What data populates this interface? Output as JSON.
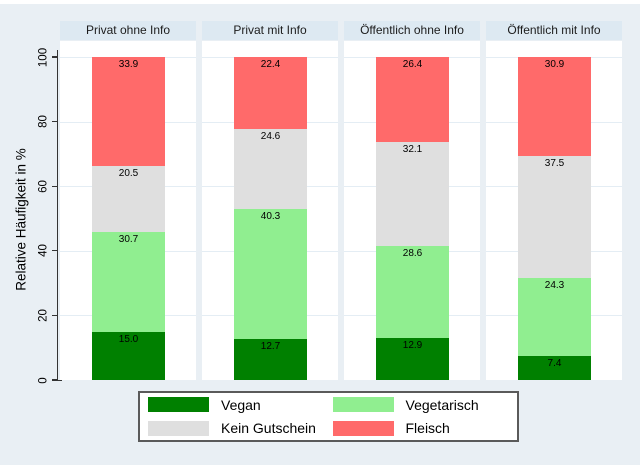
{
  "chart_data": {
    "type": "bar",
    "stacked": true,
    "categories": [
      "Privat ohne Info",
      "Privat mit Info",
      "Öffentlich ohne Info",
      "Öffentlich mit Info"
    ],
    "series": [
      {
        "name": "Vegan",
        "color": "#008000",
        "values": [
          15.0,
          12.7,
          12.9,
          7.4
        ]
      },
      {
        "name": "Vegetarisch",
        "color": "#90ee90",
        "values": [
          30.7,
          40.3,
          28.6,
          24.3
        ]
      },
      {
        "name": "Kein Gutschein",
        "color": "#dfdfdf",
        "values": [
          20.5,
          24.6,
          32.1,
          37.5
        ]
      },
      {
        "name": "Fleisch",
        "color": "#ff6a6a",
        "values": [
          33.9,
          22.4,
          26.4,
          30.9
        ]
      }
    ],
    "ylabel": "Relative Häufigkeit in %",
    "yticks": [
      0,
      20,
      40,
      60,
      80,
      100
    ],
    "ylim": [
      0,
      100
    ],
    "grid": true,
    "legend_position": "bottom",
    "value_labels_shown": true
  },
  "colors": {
    "figure_background": "#e9eff4",
    "panel_title_background": "#dde9f2",
    "plot_background": "#ffffff",
    "gridline": "#e4edf4",
    "axis": "#333333",
    "legend_border": "#5a5a5a"
  }
}
